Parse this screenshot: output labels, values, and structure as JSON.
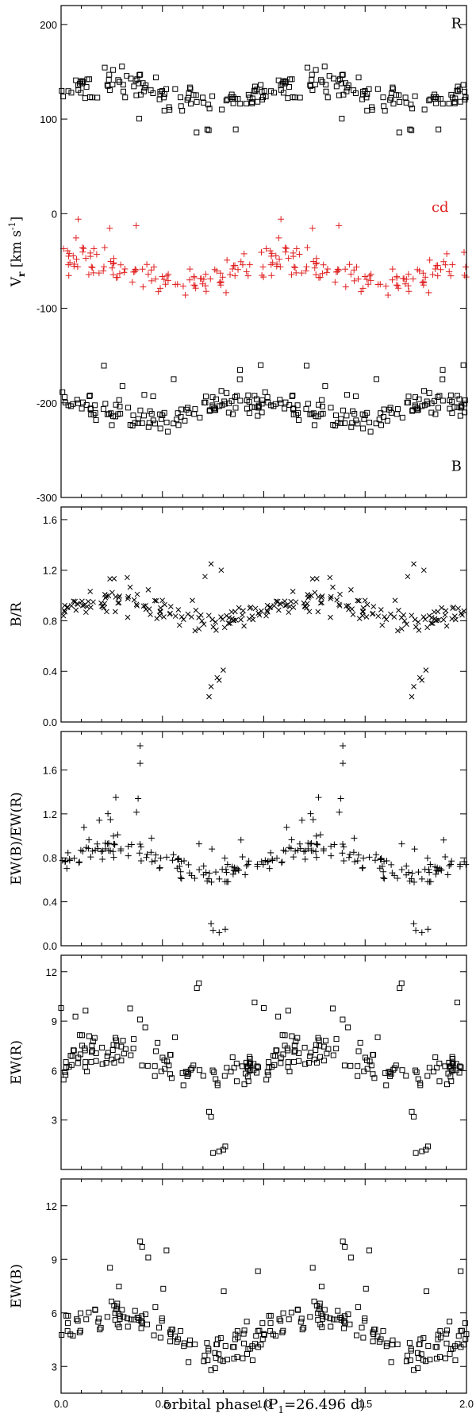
{
  "chart_data": [
    {
      "type": "scatter",
      "ylabel": "V_r  [km s^-1]",
      "ylabel_parts": {
        "base": "V",
        "sub": "r",
        "unit": "[km s",
        "exp": "-1",
        "close": "]"
      },
      "xlim": [
        0,
        2
      ],
      "ylim": [
        -300,
        220
      ],
      "yticks": [
        -300,
        -200,
        -100,
        0,
        100,
        200
      ],
      "annotations": [
        {
          "text": "R",
          "x": 1.95,
          "y": 196,
          "color": "#000000"
        },
        {
          "text": "cd",
          "x": 1.87,
          "y": 2,
          "color": "#e02020"
        },
        {
          "text": "B",
          "x": 1.95,
          "y": -272,
          "color": "#000000"
        }
      ],
      "series": [
        {
          "marker": "square",
          "color": "#000000",
          "center": 128,
          "amp": 10,
          "spread": 14,
          "outlier": 45,
          "outlier_dir": -1,
          "n": 110,
          "seed": 11
        },
        {
          "marker": "plus",
          "color": "#e02020",
          "center": -60,
          "amp": 12,
          "spread": 18,
          "outlier": 55,
          "outlier_dir": 1,
          "n": 110,
          "seed": 23
        },
        {
          "marker": "square",
          "color": "#000000",
          "center": -208,
          "amp": 8,
          "spread": 12,
          "outlier": 40,
          "outlier_dir": 1,
          "n": 120,
          "seed": 37
        }
      ]
    },
    {
      "type": "scatter",
      "ylabel": "B/R",
      "xlim": [
        0,
        2
      ],
      "ylim": [
        0,
        1.7
      ],
      "yticks": [
        0.0,
        0.4,
        0.8,
        1.2,
        1.6
      ],
      "series": [
        {
          "marker": "cross",
          "color": "#000000",
          "center": 0.88,
          "amp": 0.08,
          "spread": 0.09,
          "outlier": 0.2,
          "outlier_dir": 1,
          "n": 115,
          "seed": 41,
          "extra": [
            [
              0.73,
              0.2
            ],
            [
              0.74,
              0.28
            ],
            [
              0.77,
              0.35
            ],
            [
              0.8,
              0.41
            ],
            [
              0.78,
              0.33
            ],
            [
              0.74,
              1.25
            ],
            [
              0.79,
              1.2
            ],
            [
              0.71,
              1.15
            ]
          ]
        }
      ]
    },
    {
      "type": "scatter",
      "ylabel": "EW(B)/EW(R)",
      "xlim": [
        0,
        2
      ],
      "ylim": [
        0,
        1.95
      ],
      "yticks": [
        0.0,
        0.4,
        0.8,
        1.2,
        1.6
      ],
      "series": [
        {
          "marker": "plus",
          "color": "#000000",
          "center": 0.78,
          "amp": 0.12,
          "spread": 0.1,
          "outlier": 0.3,
          "outlier_dir": 1,
          "n": 115,
          "seed": 53,
          "extra": [
            [
              0.39,
              1.82
            ],
            [
              0.39,
              1.66
            ],
            [
              0.38,
              1.34
            ],
            [
              0.74,
              0.2
            ],
            [
              0.75,
              0.14
            ],
            [
              0.78,
              0.12
            ],
            [
              0.81,
              0.15
            ],
            [
              0.27,
              1.35
            ]
          ]
        }
      ]
    },
    {
      "type": "scatter",
      "ylabel": "EW(R)",
      "xlim": [
        0,
        2
      ],
      "ylim": [
        0,
        13
      ],
      "yticks": [
        3,
        6,
        9,
        12
      ],
      "series": [
        {
          "marker": "square",
          "color": "#000000",
          "center": 6.4,
          "amp": 0.7,
          "spread": 0.9,
          "outlier": 2.6,
          "outlier_dir": 1,
          "n": 120,
          "seed": 67,
          "extra": [
            [
              0.73,
              3.5
            ],
            [
              0.74,
              3.2
            ],
            [
              0.75,
              1.0
            ],
            [
              0.78,
              1.1
            ],
            [
              0.8,
              1.2
            ],
            [
              0.81,
              1.4
            ],
            [
              0.68,
              11.3
            ],
            [
              0.67,
              11.0
            ],
            [
              0.0,
              9.8
            ]
          ]
        }
      ]
    },
    {
      "type": "scatter",
      "ylabel": "EW(B)",
      "xlim": [
        0,
        2
      ],
      "ylim": [
        1.5,
        13.5
      ],
      "yticks": [
        3,
        6,
        9,
        12
      ],
      "series": [
        {
          "marker": "square",
          "color": "#000000",
          "center": 5.0,
          "amp": 1.0,
          "spread": 1.0,
          "outlier": 3.0,
          "outlier_dir": 1,
          "n": 120,
          "seed": 79,
          "extra": [
            [
              0.39,
              10.0
            ],
            [
              0.4,
              9.7
            ],
            [
              0.43,
              9.1
            ],
            [
              0.52,
              9.5
            ],
            [
              0.74,
              2.8
            ],
            [
              0.76,
              2.9
            ]
          ]
        }
      ]
    }
  ],
  "xaxis": {
    "label": "orbital phase (P",
    "label_sub": "1",
    "label_tail": "=26.496 d)",
    "ticks": [
      "0.0",
      "0.5",
      "1.0",
      "1.5",
      "2.0"
    ]
  }
}
